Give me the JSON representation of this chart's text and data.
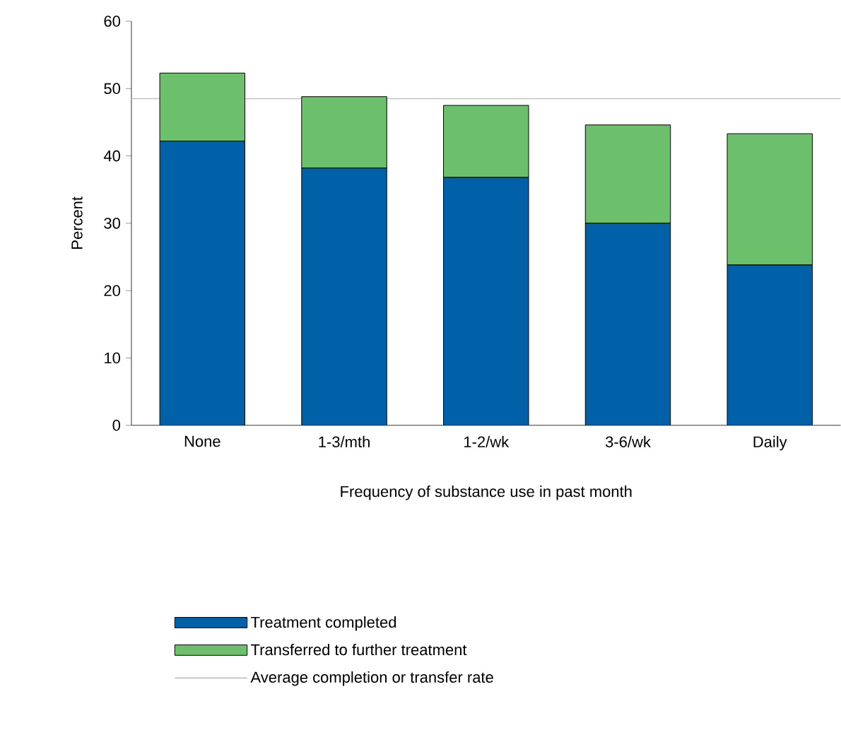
{
  "chart_data": {
    "type": "bar",
    "stacked": true,
    "xlabel": "Frequency of substance use in past month",
    "ylabel": "Percent",
    "categories": [
      "None",
      "1-3/mth",
      "1-2/wk",
      "3-6/wk",
      "Daily"
    ],
    "series": [
      {
        "name": "Treatment completed",
        "color": "#0060a8",
        "values": [
          42.2,
          38.2,
          36.8,
          30.0,
          23.8
        ]
      },
      {
        "name": "Transferred to further treatment",
        "color": "#6cc06c",
        "values": [
          10.1,
          10.6,
          10.7,
          14.6,
          19.5
        ]
      }
    ],
    "ylim": [
      0,
      60
    ],
    "yticks": [
      0,
      10,
      20,
      30,
      40,
      50,
      60
    ],
    "ref_lines": [
      {
        "axis": "y",
        "value": 48.5,
        "label": "Average completion or transfer rate",
        "color": "#c0c0c0"
      }
    ],
    "legend": "bottom"
  }
}
